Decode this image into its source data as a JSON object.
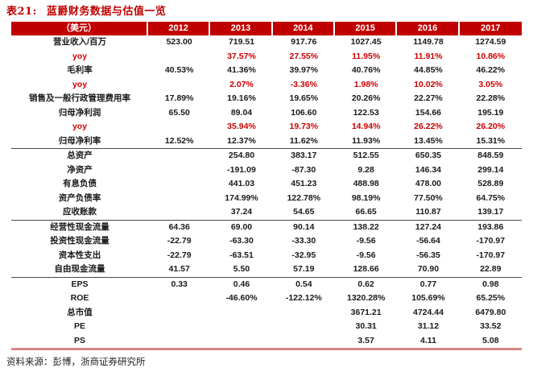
{
  "title": {
    "prefix": "表21:",
    "text": "蓝爵财务数据与估值一览"
  },
  "colors": {
    "header_bg": "#C00000",
    "title_red": "#C00000",
    "yoy_red": "#CC0000",
    "bottom_rule": "#DB8585",
    "divider": "#4A4A4A",
    "text": "#1A1A1A"
  },
  "table": {
    "columns": [
      "（美元）",
      "2012",
      "2013",
      "2014",
      "2015",
      "2016",
      "2017"
    ],
    "rows": [
      {
        "label": "营业收入/百万",
        "values": [
          "523.00",
          "719.51",
          "917.76",
          "1027.45",
          "1149.78",
          "1274.59"
        ],
        "red": false,
        "divider_after": false
      },
      {
        "label": "yoy",
        "values": [
          "",
          "37.57%",
          "27.55%",
          "11.95%",
          "11.91%",
          "10.86%"
        ],
        "red": true,
        "divider_after": false
      },
      {
        "label": "毛利率",
        "values": [
          "40.53%",
          "41.36%",
          "39.97%",
          "40.76%",
          "44.85%",
          "46.22%"
        ],
        "red": false,
        "divider_after": false
      },
      {
        "label": "yoy",
        "values": [
          "",
          "2.07%",
          "-3.36%",
          "1.98%",
          "10.02%",
          "3.05%"
        ],
        "red": true,
        "divider_after": false
      },
      {
        "label": "销售及一般行政管理费用率",
        "values": [
          "17.89%",
          "19.16%",
          "19.65%",
          "20.26%",
          "22.27%",
          "22.28%"
        ],
        "red": false,
        "divider_after": false
      },
      {
        "label": "归母净利润",
        "values": [
          "65.50",
          "89.04",
          "106.60",
          "122.53",
          "154.66",
          "195.19"
        ],
        "red": false,
        "divider_after": false
      },
      {
        "label": "yoy",
        "values": [
          "",
          "35.94%",
          "19.73%",
          "14.94%",
          "26.22%",
          "26.20%"
        ],
        "red": true,
        "divider_after": false
      },
      {
        "label": "归母净利率",
        "values": [
          "12.52%",
          "12.37%",
          "11.62%",
          "11.93%",
          "13.45%",
          "15.31%"
        ],
        "red": false,
        "divider_after": true
      },
      {
        "label": "总资产",
        "values": [
          "",
          "254.80",
          "383.17",
          "512.55",
          "650.35",
          "848.59"
        ],
        "red": false,
        "divider_after": false
      },
      {
        "label": "净资产",
        "values": [
          "",
          "-191.09",
          "-87.30",
          "9.28",
          "146.34",
          "299.14"
        ],
        "red": false,
        "divider_after": false
      },
      {
        "label": "有息负债",
        "values": [
          "",
          "441.03",
          "451.23",
          "488.98",
          "478.00",
          "528.89"
        ],
        "red": false,
        "divider_after": false
      },
      {
        "label": "资产负债率",
        "values": [
          "",
          "174.99%",
          "122.78%",
          "98.19%",
          "77.50%",
          "64.75%"
        ],
        "red": false,
        "divider_after": false
      },
      {
        "label": "应收账款",
        "values": [
          "",
          "37.24",
          "54.65",
          "66.65",
          "110.87",
          "139.17"
        ],
        "red": false,
        "divider_after": true
      },
      {
        "label": "经营性现金流量",
        "values": [
          "64.36",
          "69.00",
          "90.14",
          "138.22",
          "127.24",
          "193.86"
        ],
        "red": false,
        "divider_after": false
      },
      {
        "label": "投资性现金流量",
        "values": [
          "-22.79",
          "-63.30",
          "-33.30",
          "-9.56",
          "-56.64",
          "-170.97"
        ],
        "red": false,
        "divider_after": false
      },
      {
        "label": "资本性支出",
        "values": [
          "-22.79",
          "-63.51",
          "-32.95",
          "-9.56",
          "-56.35",
          "-170.97"
        ],
        "red": false,
        "divider_after": false
      },
      {
        "label": "自由现金流量",
        "values": [
          "41.57",
          "5.50",
          "57.19",
          "128.66",
          "70.90",
          "22.89"
        ],
        "red": false,
        "divider_after": true
      },
      {
        "label": "EPS",
        "values": [
          "0.33",
          "0.46",
          "0.54",
          "0.62",
          "0.77",
          "0.98"
        ],
        "red": false,
        "divider_after": false
      },
      {
        "label": "ROE",
        "values": [
          "",
          "-46.60%",
          "-122.12%",
          "1320.28%",
          "105.69%",
          "65.25%"
        ],
        "red": false,
        "divider_after": false
      },
      {
        "label": "总市值",
        "values": [
          "",
          "",
          "",
          "3671.21",
          "4724.44",
          "6479.80"
        ],
        "red": false,
        "divider_after": false
      },
      {
        "label": "PE",
        "values": [
          "",
          "",
          "",
          "30.31",
          "31.12",
          "33.52"
        ],
        "red": false,
        "divider_after": false
      },
      {
        "label": "PS",
        "values": [
          "",
          "",
          "",
          "3.57",
          "4.11",
          "5.08"
        ],
        "red": false,
        "divider_after": false
      }
    ]
  },
  "footer": {
    "text": "资料来源：彭博，浙商证券研究所"
  }
}
